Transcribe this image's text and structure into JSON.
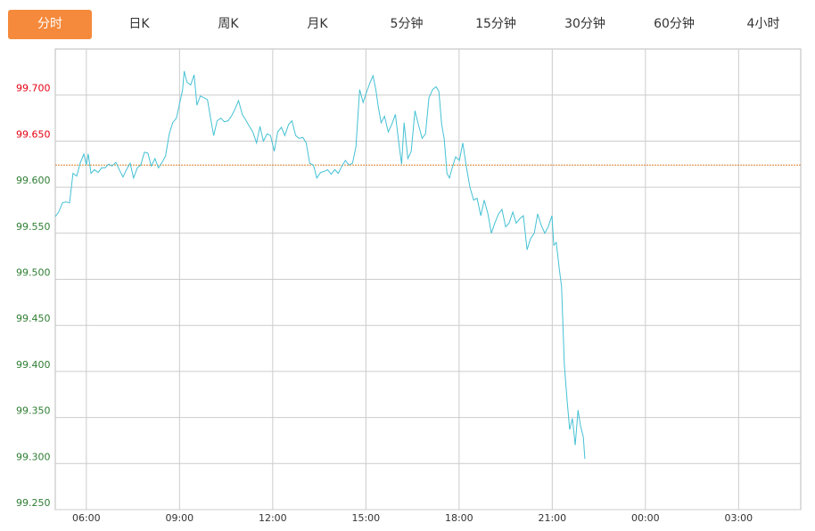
{
  "tabs": {
    "items": [
      "分时",
      "日K",
      "周K",
      "月K",
      "5分钟",
      "15分钟",
      "30分钟",
      "60分钟",
      "4小时"
    ],
    "active_index": 0
  },
  "chart_data": {
    "type": "line",
    "xlim": [
      5,
      29
    ],
    "xticks": [
      {
        "value": 6,
        "label": "06:00"
      },
      {
        "value": 9,
        "label": "09:00"
      },
      {
        "value": 12,
        "label": "12:00"
      },
      {
        "value": 15,
        "label": "15:00"
      },
      {
        "value": 18,
        "label": "18:00"
      },
      {
        "value": 21,
        "label": "21:00"
      },
      {
        "value": 24,
        "label": "00:00"
      },
      {
        "value": 27,
        "label": "03:00"
      }
    ],
    "ylim": [
      99.25,
      99.75
    ],
    "yticks": [
      {
        "value": 99.25,
        "label": "99.250"
      },
      {
        "value": 99.3,
        "label": "99.300"
      },
      {
        "value": 99.35,
        "label": "99.350"
      },
      {
        "value": 99.4,
        "label": "99.400"
      },
      {
        "value": 99.45,
        "label": "99.450"
      },
      {
        "value": 99.5,
        "label": "99.500"
      },
      {
        "value": 99.55,
        "label": "99.550"
      },
      {
        "value": 99.6,
        "label": "99.600"
      },
      {
        "value": 99.65,
        "label": "99.650"
      },
      {
        "value": 99.7,
        "label": "99.700"
      }
    ],
    "grid": true,
    "reference_value": 99.624,
    "reference_color": "#d9822b",
    "up_color": "#e60012",
    "down_color": "#2e7d32",
    "color": "#45c1d4",
    "x": [
      5.0,
      5.11,
      5.23,
      5.34,
      5.46,
      5.57,
      5.69,
      5.8,
      5.92,
      6.0,
      6.06,
      6.15,
      6.26,
      6.38,
      6.49,
      6.6,
      6.72,
      6.83,
      6.95,
      7.06,
      7.18,
      7.29,
      7.41,
      7.52,
      7.64,
      7.75,
      7.87,
      7.98,
      8.09,
      8.21,
      8.32,
      8.44,
      8.55,
      8.67,
      8.78,
      8.9,
      9.01,
      9.1,
      9.15,
      9.24,
      9.36,
      9.47,
      9.56,
      9.67,
      9.79,
      9.9,
      10.01,
      10.1,
      10.21,
      10.33,
      10.44,
      10.56,
      10.67,
      10.79,
      10.9,
      11.02,
      11.13,
      11.25,
      11.36,
      11.48,
      11.59,
      11.7,
      11.82,
      11.93,
      12.05,
      12.16,
      12.28,
      12.39,
      12.51,
      12.62,
      12.74,
      12.85,
      12.97,
      13.08,
      13.19,
      13.31,
      13.42,
      13.54,
      13.65,
      13.77,
      13.88,
      14.0,
      14.11,
      14.23,
      14.34,
      14.46,
      14.57,
      14.68,
      14.8,
      14.91,
      15.03,
      15.14,
      15.23,
      15.32,
      15.4,
      15.49,
      15.6,
      15.72,
      15.83,
      15.95,
      16.06,
      16.15,
      16.23,
      16.35,
      16.46,
      16.58,
      16.69,
      16.81,
      16.92,
      17.03,
      17.15,
      17.26,
      17.35,
      17.44,
      17.52,
      17.61,
      17.69,
      17.78,
      17.89,
      18.01,
      18.12,
      18.24,
      18.35,
      18.47,
      18.58,
      18.7,
      18.81,
      18.93,
      19.04,
      19.15,
      19.27,
      19.38,
      19.5,
      19.61,
      19.73,
      19.84,
      19.96,
      20.07,
      20.19,
      20.3,
      20.42,
      20.53,
      20.64,
      20.76,
      20.87,
      20.99,
      21.05,
      21.13,
      21.22,
      21.3,
      21.39,
      21.48,
      21.56,
      21.65,
      21.74,
      21.83,
      21.91,
      22.0,
      22.05
    ],
    "values": [
      99.568,
      99.573,
      99.583,
      99.584,
      99.583,
      99.615,
      99.612,
      99.626,
      99.636,
      99.624,
      99.636,
      99.615,
      99.619,
      99.616,
      99.621,
      99.621,
      99.625,
      99.623,
      99.627,
      99.619,
      99.611,
      99.619,
      99.626,
      99.61,
      99.621,
      99.624,
      99.638,
      99.637,
      99.623,
      99.631,
      99.621,
      99.627,
      99.634,
      99.658,
      99.67,
      99.675,
      99.692,
      99.706,
      99.726,
      99.714,
      99.711,
      99.722,
      99.689,
      99.699,
      99.697,
      99.695,
      99.673,
      99.656,
      99.672,
      99.675,
      99.671,
      99.672,
      99.677,
      99.685,
      99.694,
      99.679,
      99.673,
      99.666,
      99.66,
      99.648,
      99.666,
      99.65,
      99.658,
      99.656,
      99.639,
      99.66,
      99.665,
      99.656,
      99.668,
      99.672,
      99.656,
      99.653,
      99.654,
      99.648,
      99.626,
      99.624,
      99.61,
      99.616,
      99.617,
      99.619,
      99.614,
      99.619,
      99.615,
      99.623,
      99.629,
      99.624,
      99.626,
      99.644,
      99.706,
      99.692,
      99.704,
      99.714,
      99.721,
      99.706,
      99.687,
      99.67,
      99.677,
      99.66,
      99.668,
      99.679,
      99.648,
      99.625,
      99.67,
      99.631,
      99.639,
      99.683,
      99.668,
      99.653,
      99.658,
      99.697,
      99.706,
      99.709,
      99.704,
      99.668,
      99.653,
      99.615,
      99.61,
      99.621,
      99.633,
      99.629,
      99.648,
      99.621,
      99.6,
      99.586,
      99.588,
      99.569,
      99.586,
      99.571,
      99.55,
      99.561,
      99.571,
      99.576,
      99.557,
      99.561,
      99.573,
      99.561,
      99.566,
      99.569,
      99.532,
      99.544,
      99.55,
      99.571,
      99.559,
      99.55,
      99.557,
      99.569,
      99.537,
      99.54,
      99.513,
      99.492,
      99.407,
      99.368,
      99.337,
      99.349,
      99.32,
      99.358,
      99.341,
      99.329,
      99.305
    ]
  }
}
